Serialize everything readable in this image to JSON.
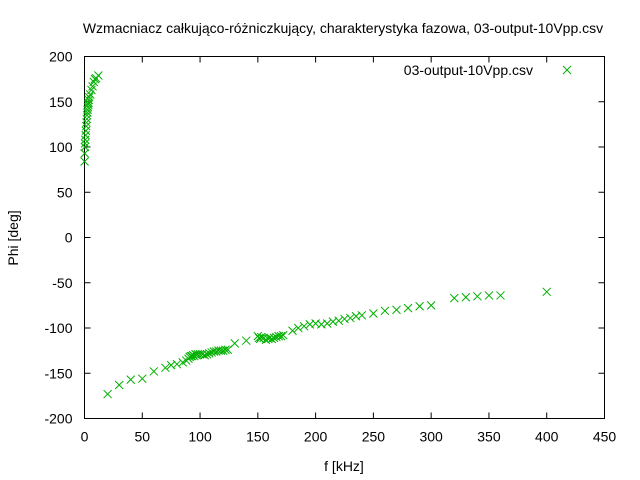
{
  "chart_data": {
    "type": "scatter",
    "title": "Wzmacniacz całkująco-różniczkujący, charakterystyka fazowa, 03-output-10Vpp.csv",
    "xlabel": "f [kHz]",
    "ylabel": "Phi [deg]",
    "xlim": [
      0,
      450
    ],
    "ylim": [
      -200,
      200
    ],
    "xticks": [
      "0",
      "50",
      "100",
      "150",
      "200",
      "250",
      "300",
      "350",
      "400",
      "450"
    ],
    "yticks": [
      "-200",
      "-150",
      "-100",
      "-50",
      "0",
      "50",
      "100",
      "150",
      "200"
    ],
    "grid": false,
    "legend_position": "top-right",
    "marker": "x",
    "series": [
      {
        "name": "03-output-10Vpp.csv",
        "color": "#00b000",
        "points": [
          [
            0.1,
            84
          ],
          [
            0.2,
            93
          ],
          [
            0.3,
            100
          ],
          [
            0.5,
            104
          ],
          [
            0.7,
            108
          ],
          [
            1,
            113
          ],
          [
            1.2,
            118
          ],
          [
            1.5,
            123
          ],
          [
            1.7,
            127
          ],
          [
            2,
            131
          ],
          [
            2.2,
            135
          ],
          [
            2.5,
            138
          ],
          [
            2.7,
            141
          ],
          [
            3,
            144
          ],
          [
            3.2,
            147
          ],
          [
            3.5,
            149
          ],
          [
            3.7,
            152
          ],
          [
            4,
            155
          ],
          [
            5,
            158
          ],
          [
            6,
            163
          ],
          [
            7,
            167
          ],
          [
            8,
            172
          ],
          [
            9,
            175
          ],
          [
            10,
            176
          ],
          [
            12,
            179
          ],
          [
            20,
            -173
          ],
          [
            30,
            -163
          ],
          [
            40,
            -157
          ],
          [
            50,
            -156
          ],
          [
            60,
            -148
          ],
          [
            70,
            -144
          ],
          [
            75,
            -141
          ],
          [
            80,
            -140
          ],
          [
            85,
            -138
          ],
          [
            88,
            -136
          ],
          [
            90,
            -134
          ],
          [
            91,
            -132
          ],
          [
            92,
            -131
          ],
          [
            93,
            -131
          ],
          [
            94,
            -130
          ],
          [
            95,
            -131
          ],
          [
            96,
            -129
          ],
          [
            97,
            -130
          ],
          [
            98,
            -129
          ],
          [
            100,
            -129
          ],
          [
            102,
            -129
          ],
          [
            104,
            -130
          ],
          [
            106,
            -129
          ],
          [
            108,
            -128
          ],
          [
            110,
            -127
          ],
          [
            112,
            -126
          ],
          [
            114,
            -126
          ],
          [
            116,
            -125
          ],
          [
            118,
            -125
          ],
          [
            120,
            -125
          ],
          [
            122,
            -124
          ],
          [
            124,
            -124
          ],
          [
            130,
            -117
          ],
          [
            140,
            -114
          ],
          [
            150,
            -109
          ],
          [
            151,
            -111
          ],
          [
            152,
            -112
          ],
          [
            153,
            -110
          ],
          [
            155,
            -111
          ],
          [
            157,
            -113
          ],
          [
            159,
            -112
          ],
          [
            160,
            -111
          ],
          [
            162,
            -112
          ],
          [
            164,
            -111
          ],
          [
            166,
            -110
          ],
          [
            168,
            -109
          ],
          [
            170,
            -109
          ],
          [
            172,
            -108
          ],
          [
            180,
            -103
          ],
          [
            185,
            -100
          ],
          [
            190,
            -98
          ],
          [
            195,
            -96
          ],
          [
            200,
            -95
          ],
          [
            205,
            -96
          ],
          [
            210,
            -95
          ],
          [
            215,
            -93
          ],
          [
            220,
            -92
          ],
          [
            225,
            -90
          ],
          [
            230,
            -89
          ],
          [
            235,
            -87
          ],
          [
            240,
            -86
          ],
          [
            250,
            -84
          ],
          [
            260,
            -81
          ],
          [
            270,
            -80
          ],
          [
            280,
            -78
          ],
          [
            290,
            -76
          ],
          [
            300,
            -75
          ],
          [
            320,
            -67
          ],
          [
            330,
            -66
          ],
          [
            340,
            -65
          ],
          [
            350,
            -64
          ],
          [
            360,
            -64
          ],
          [
            400,
            -60
          ]
        ]
      }
    ]
  }
}
